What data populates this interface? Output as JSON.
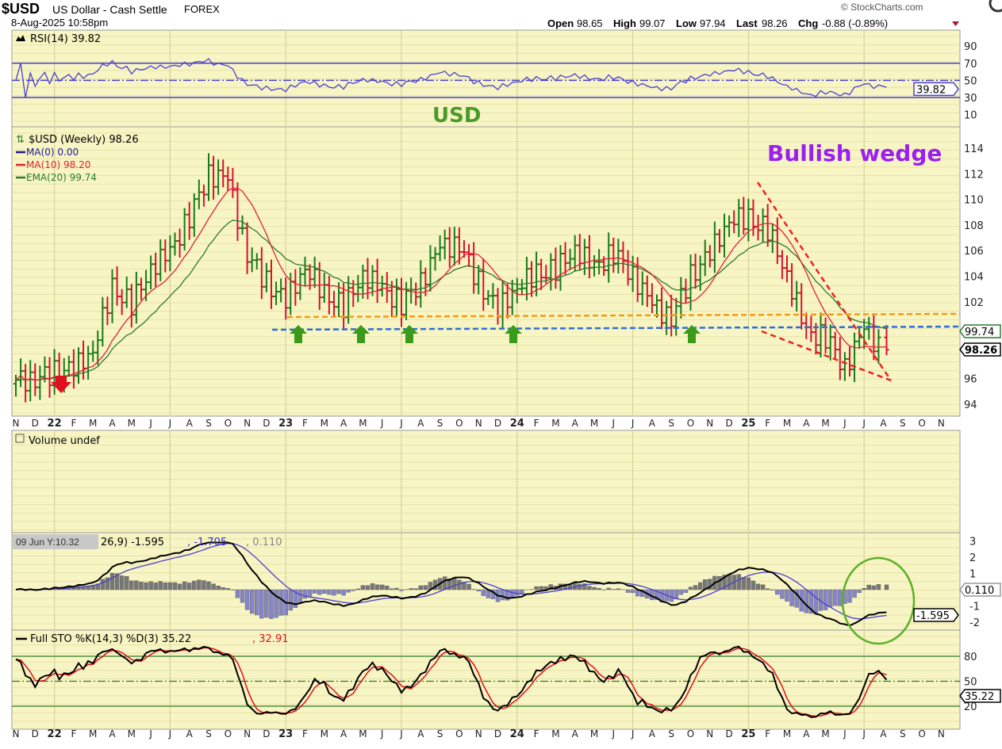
{
  "header": {
    "symbol": "$USD",
    "name": "US Dollar - Cash Settle",
    "exchange": "FOREX",
    "date": "8-Aug-2025 10:58pm",
    "copyright": "© StockCharts.com",
    "open_label": "Open",
    "open": "98.65",
    "high_label": "High",
    "high": "99.07",
    "low_label": "Low",
    "low": "97.94",
    "last_label": "Last",
    "last": "98.26",
    "chg_label": "Chg",
    "chg": "-0.88 (-0.89%)"
  },
  "colors": {
    "panel_bg": "#f8f5c4",
    "up": "#1a7a1a",
    "down": "#d8102c",
    "rsi": "#4a3fd0",
    "ma10": "#e0203a",
    "ema20": "#2b7a2b",
    "orange": "#f39c12",
    "blue": "#2f6fd6",
    "annot_green": "#4a9a2a",
    "annot_purple": "#9b1ff0"
  },
  "annotations": {
    "usd": "USD",
    "wedge": "Bullish wedge"
  },
  "chart_data": {
    "type": "line",
    "title": "$USD (Weekly) 98.26",
    "months": [
      "N",
      "D",
      "22",
      "F",
      "M",
      "A",
      "M",
      "J",
      "J",
      "A",
      "S",
      "O",
      "N",
      "D",
      "23",
      "F",
      "M",
      "A",
      "M",
      "J",
      "J",
      "A",
      "S",
      "O",
      "N",
      "D",
      "24",
      "F",
      "M",
      "A",
      "M",
      "J",
      "J",
      "A",
      "S",
      "O",
      "N",
      "D",
      "25",
      "F",
      "M",
      "A",
      "M",
      "J",
      "J",
      "A",
      "S",
      "O",
      "N"
    ],
    "monthly_close": [
      95.9,
      96.0,
      96.5,
      96.7,
      98.3,
      103.0,
      101.8,
      104.7,
      105.8,
      108.7,
      112.0,
      111.5,
      105.8,
      103.5,
      102.0,
      104.8,
      102.5,
      101.6,
      104.2,
      102.9,
      101.9,
      103.6,
      106.2,
      106.6,
      103.5,
      101.3,
      103.3,
      104.1,
      104.5,
      106.2,
      104.6,
      105.9,
      104.1,
      101.7,
      100.8,
      104.0,
      105.7,
      108.5,
      108.4,
      107.6,
      104.2,
      99.5,
      99.3,
      96.9,
      99.8,
      98.26
    ],
    "price_axis": {
      "ticks": [
        94,
        96,
        102,
        104,
        106,
        108,
        110,
        112,
        114
      ],
      "range": [
        93.5,
        115.5
      ]
    },
    "legend": {
      "ma0": "MA(0) 0.00",
      "ma10": "MA(10) 98.20",
      "ema20": "EMA(20) 99.74"
    },
    "price_tags": {
      "ema20": "99.74",
      "last": "98.26"
    },
    "rsi": {
      "label": "RSI(14) 39.82",
      "ticks": [
        90,
        70,
        50,
        30,
        10
      ],
      "levels": [
        70,
        50,
        30
      ],
      "tag": "39.82"
    },
    "volume": {
      "label": "Volume undef"
    },
    "macd": {
      "tooltip": "09 Jun Y:10.32",
      "label": "26,9) -1.595",
      "signal": ", -1.705",
      "hist": ", 0.110",
      "ticks": [
        "3",
        "2",
        "1",
        "-1",
        "-2"
      ],
      "tag_hist": "0.110",
      "tag_macd": "-1.595"
    },
    "sto": {
      "label": "Full STO %K(14,3) %D(3) 35.22",
      "d": ", 32.91",
      "ticks": [
        "80",
        "50",
        "20"
      ],
      "tag": "35.22"
    }
  }
}
